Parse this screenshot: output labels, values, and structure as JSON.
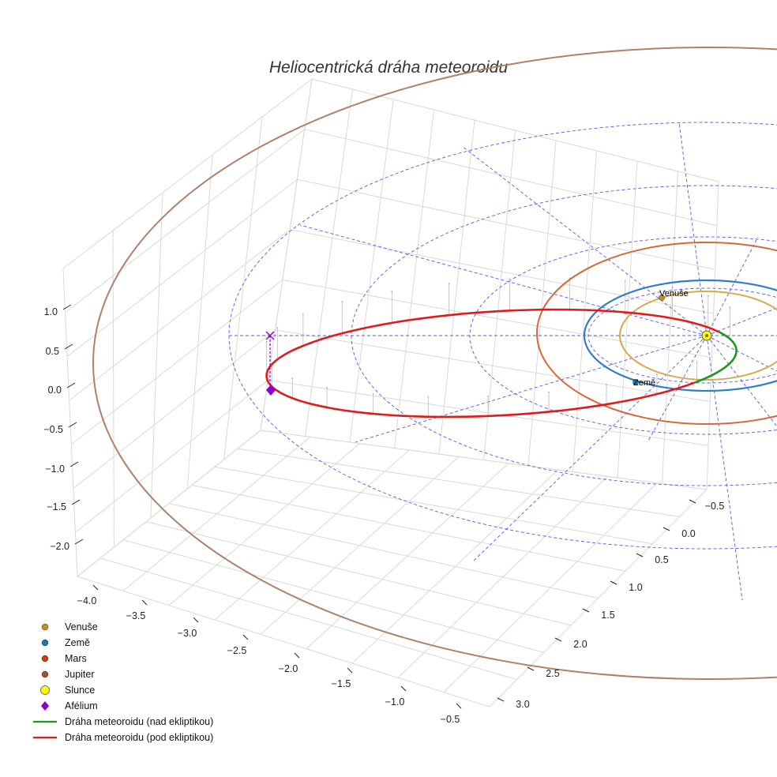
{
  "chart_data": {
    "type": "line",
    "title": "Heliocentrická dráha meteoroidu",
    "projection": "3d",
    "axes": {
      "x": {
        "ticks": [
          -4.0,
          -3.5,
          -3.0,
          -2.5,
          -2.0,
          -1.5,
          -1.0,
          -0.5
        ],
        "tick_labels": [
          "−4.0",
          "−3.5",
          "−3.0",
          "−2.5",
          "−2.0",
          "−1.5",
          "−1.0",
          "−0.5"
        ]
      },
      "y": {
        "ticks": [
          -0.5,
          0.0,
          0.5,
          1.0,
          1.5,
          2.0,
          2.5,
          3.0
        ],
        "tick_labels": [
          "−0.5",
          "0.0",
          "0.5",
          "1.0",
          "1.5",
          "2.0",
          "2.5",
          "3.0"
        ]
      },
      "z": {
        "ticks": [
          1.0,
          0.5,
          0.0,
          -0.5,
          -1.0,
          -1.5,
          -2.0
        ],
        "tick_labels": [
          "1.0",
          "0.5",
          "0.0",
          "−0.5",
          "−1.0",
          "−1.5",
          "−2.0"
        ]
      }
    },
    "planets": [
      {
        "name": "Venuše",
        "color": "#c98a1e",
        "orbit_color": "#d9a84e",
        "label": "Venuše"
      },
      {
        "name": "Země",
        "color": "#1f77b4",
        "orbit_color": "#2f7ec8",
        "label": "Země"
      },
      {
        "name": "Mars",
        "color": "#c1440e",
        "orbit_color": "#d4683c"
      },
      {
        "name": "Jupiter",
        "color": "#a0522d",
        "orbit_color": "#b08068"
      }
    ],
    "sun": {
      "name": "Slunce",
      "color": "#ffff00"
    },
    "aphelion": {
      "name": "Afélium",
      "color": "#8e00c8"
    },
    "meteoroid_orbit": {
      "above_ecliptic": {
        "name": "Dráha meteoroidu (nad ekliptikou)",
        "color": "#1a9a1a"
      },
      "below_ecliptic": {
        "name": "Dráha meteoroidu (pod ekliptikou)",
        "color": "#e01b1b"
      }
    },
    "grid": true,
    "legend_position": "bottom-left"
  },
  "legend": [
    {
      "label": "Venuše",
      "symbol": "dot",
      "color": "#c98a1e"
    },
    {
      "label": "Země",
      "symbol": "dot",
      "color": "#1f77b4"
    },
    {
      "label": "Mars",
      "symbol": "dot",
      "color": "#c1440e"
    },
    {
      "label": "Jupiter",
      "symbol": "dot",
      "color": "#a0522d"
    },
    {
      "label": "Slunce",
      "symbol": "dot-large",
      "color": "#ffff00"
    },
    {
      "label": "Afélium",
      "symbol": "diamond",
      "color": "#8e00c8"
    },
    {
      "label": "Dráha meteoroidu (nad ekliptikou)",
      "symbol": "line",
      "color": "#1a9a1a"
    },
    {
      "label": "Dráha meteoroidu (pod ekliptikou)",
      "symbol": "line",
      "color": "#e01b1b"
    }
  ]
}
